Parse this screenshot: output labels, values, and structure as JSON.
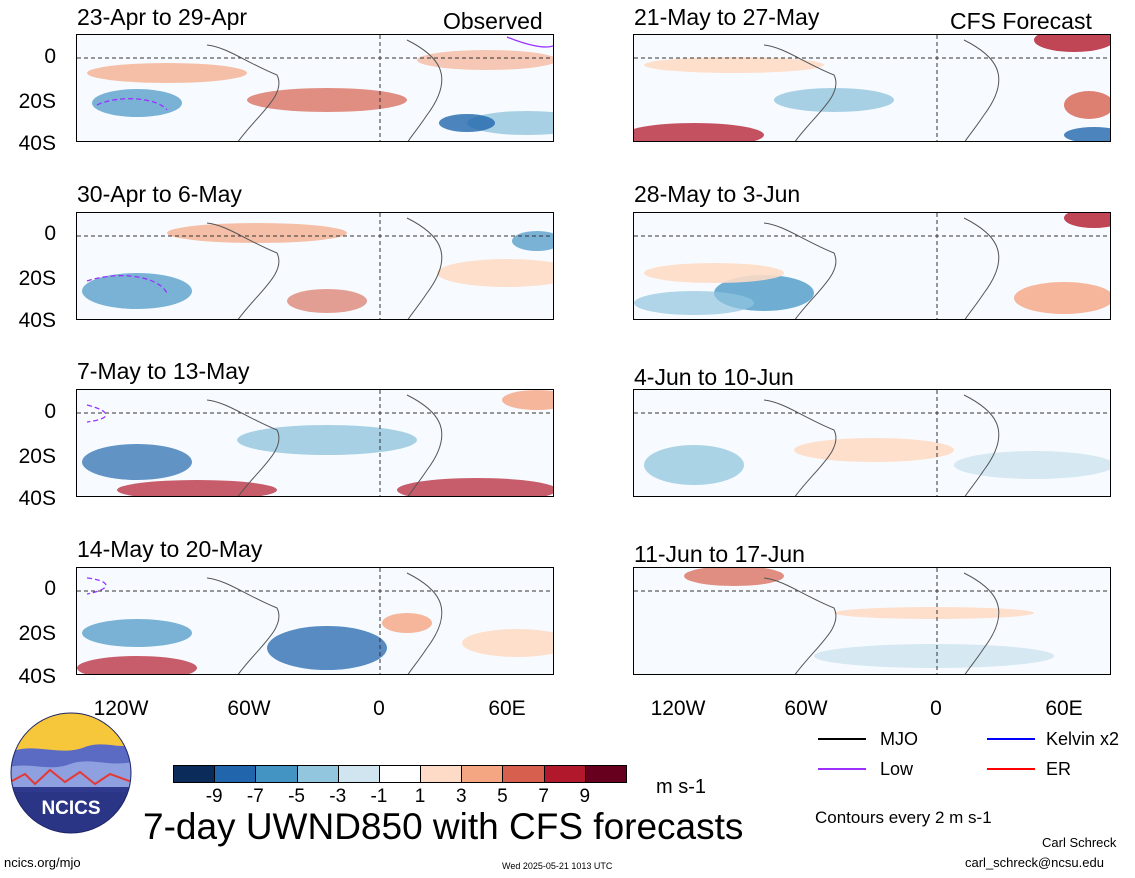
{
  "panels_left": [
    {
      "title": "23-Apr to 29-Apr",
      "tag": "Observed"
    },
    {
      "title": "30-Apr to 6-May",
      "tag": ""
    },
    {
      "title": "7-May to 13-May",
      "tag": ""
    },
    {
      "title": "14-May to 20-May",
      "tag": ""
    }
  ],
  "panels_right": [
    {
      "title": "21-May to 27-May",
      "tag": "CFS Forecast"
    },
    {
      "title": "28-May to 3-Jun",
      "tag": ""
    },
    {
      "title": "4-Jun to 10-Jun",
      "tag": ""
    },
    {
      "title": "11-Jun to 17-Jun",
      "tag": ""
    }
  ],
  "y_ticks": [
    "0",
    "20S",
    "40S"
  ],
  "x_ticks": [
    "120W",
    "60W",
    "0",
    "60E"
  ],
  "colorbar": {
    "labels": [
      "-9",
      "-7",
      "-5",
      "-3",
      "-1",
      "1",
      "3",
      "5",
      "7",
      "9"
    ],
    "colors": [
      "#0b2c5a",
      "#2166ac",
      "#4393c3",
      "#92c5de",
      "#d1e5f0",
      "#ffffff",
      "#fddbc7",
      "#f4a582",
      "#d6604d",
      "#b2182b",
      "#67001f"
    ],
    "units": "m s-1"
  },
  "legend": [
    {
      "label": "MJO",
      "color": "#000000"
    },
    {
      "label": "Kelvin x2",
      "color": "#0000ff"
    },
    {
      "label": "Low",
      "color": "#9b30ff"
    },
    {
      "label": "ER",
      "color": "#ff0000"
    }
  ],
  "contour_note": "Contours every 2 m s-1",
  "main_title": "7-day UWND850 with CFS forecasts",
  "logo_text": "NCICS",
  "footer": {
    "url": "ncics.org/mjo",
    "timestamp": "Wed 2025-05-21 1013 UTC",
    "author": "Carl Schreck",
    "email": "carl_schreck@ncsu.edu"
  }
}
